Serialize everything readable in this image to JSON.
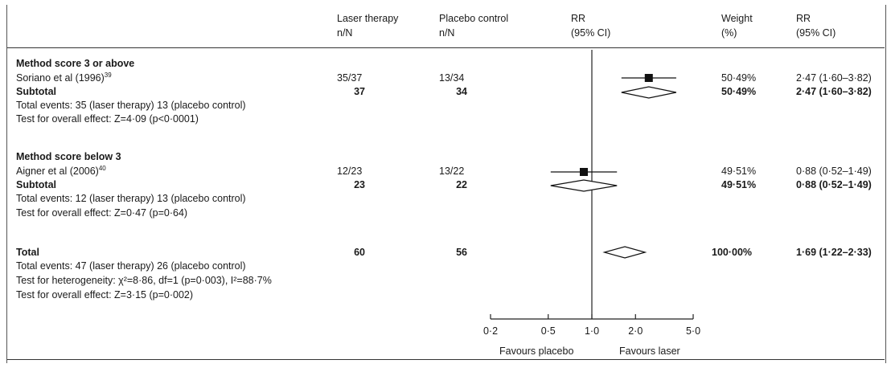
{
  "headers": {
    "laser": "Laser therapy",
    "laser_unit": "n/N",
    "placebo": "Placebo control",
    "placebo_unit": "n/N",
    "rr_plot": "RR",
    "rr_plot_ci": "(95% CI)",
    "weight": "Weight",
    "weight_unit": "(%)",
    "rr_text": "RR",
    "rr_text_ci": "(95% CI)"
  },
  "groups": [
    {
      "title": "Method score 3 or above",
      "study": {
        "name": "Soriano et al (1996)",
        "ref": "39",
        "laser": "35/37",
        "placebo": "13/34",
        "weight": "50·49%",
        "rr": "2·47 (1·60–3·82)"
      },
      "subtotal": {
        "label": "Subtotal",
        "laser": "37",
        "placebo": "34",
        "weight": "50·49%",
        "rr": "2·47 (1·60–3·82)"
      },
      "events": "Total events: 35 (laser therapy) 13 (placebo control)",
      "effect": "Test for overall effect: Z=4·09 (p<0·0001)"
    },
    {
      "title": "Method score below 3",
      "study": {
        "name": "Aigner et al (2006)",
        "ref": "40",
        "laser": "12/23",
        "placebo": "13/22",
        "weight": "49·51%",
        "rr": "0·88 (0·52–1·49)"
      },
      "subtotal": {
        "label": "Subtotal",
        "laser": "23",
        "placebo": "22",
        "weight": "49·51%",
        "rr": "0·88 (0·52–1·49)"
      },
      "events": "Total events: 12 (laser therapy) 13 (placebo control)",
      "effect": "Test for overall effect: Z=0·47 (p=0·64)"
    }
  ],
  "total": {
    "label": "Total",
    "laser": "60",
    "placebo": "56",
    "weight": "100·00%",
    "rr": "1·69 (1·22–2·33)",
    "events": "Total events: 47 (laser therapy) 26 (placebo control)",
    "heterogeneity": "Test for heterogeneity: χ²=8·86, df=1 (p=0·003), I²=88·7%",
    "effect": "Test for overall effect: Z=3·15 (p=0·002)"
  },
  "axis": {
    "favours_left": "Favours placebo",
    "favours_right": "Favours laser"
  },
  "chart_data": {
    "type": "forest",
    "scale": "log",
    "xlim": [
      0.2,
      5.0
    ],
    "ticks": [
      0.2,
      0.5,
      1.0,
      2.0,
      5.0
    ],
    "tick_labels": [
      "0·2",
      "0·5",
      "1·0",
      "2·0",
      "5·0"
    ],
    "null_value": 1.0,
    "studies": [
      {
        "name": "Soriano et al (1996)",
        "rr": 2.47,
        "lo": 1.6,
        "hi": 3.82,
        "weight": 50.49
      },
      {
        "name": "Aigner et al (2006)",
        "rr": 0.88,
        "lo": 0.52,
        "hi": 1.49,
        "weight": 49.51
      }
    ],
    "subtotals": [
      {
        "label": "Subtotal",
        "group": "Method score 3 or above",
        "rr": 2.47,
        "lo": 1.6,
        "hi": 3.82
      },
      {
        "label": "Subtotal",
        "group": "Method score below 3",
        "rr": 0.88,
        "lo": 0.52,
        "hi": 1.49
      }
    ],
    "total": {
      "label": "Total",
      "rr": 1.69,
      "lo": 1.22,
      "hi": 2.33
    }
  }
}
